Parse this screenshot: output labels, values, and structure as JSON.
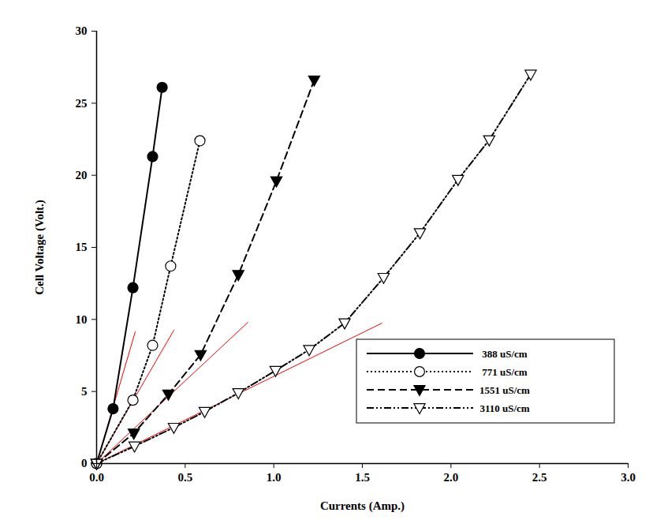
{
  "chart_data": {
    "type": "line",
    "x_label": "Currents (Amp.)",
    "y_label": "Cell Voltage (Volt.)",
    "xlim": [
      0,
      3
    ],
    "ylim": [
      0,
      30
    ],
    "xticks": [
      {
        "value": 0,
        "label": "0.0"
      },
      {
        "value": 0.5,
        "label": "0.5"
      },
      {
        "value": 1,
        "label": "1.0"
      },
      {
        "value": 1.5,
        "label": "1.5"
      },
      {
        "value": 2,
        "label": "2.0"
      },
      {
        "value": 2.5,
        "label": "2.5"
      },
      {
        "value": 3,
        "label": "3.0"
      }
    ],
    "yticks": [
      0,
      5,
      10,
      15,
      20,
      25,
      30
    ],
    "grid": false,
    "legend": "lower right",
    "series": [
      {
        "name": "388 uS/cm",
        "color": "#000000",
        "marker": "circle",
        "line_style": "solid",
        "x": [
          0,
          0.093,
          0.205,
          0.316,
          0.37
        ],
        "values": [
          0,
          3.8,
          12.2,
          21.3,
          26.1
        ]
      },
      {
        "name": "771 uS/cm",
        "color": "#000000",
        "marker": "circle-open",
        "line_style": "dotted",
        "x": [
          0,
          0.205,
          0.316,
          0.418,
          0.583
        ],
        "values": [
          0,
          4.4,
          8.2,
          13.7,
          22.4
        ]
      },
      {
        "name": "1551 uS/cm",
        "color": "#000000",
        "marker": "triangle-down",
        "line_style": "dashed",
        "x": [
          0,
          0.21,
          0.405,
          0.587,
          0.8,
          1.015,
          1.228
        ],
        "values": [
          0,
          2.1,
          4.8,
          7.55,
          13.1,
          19.6,
          26.6
        ]
      },
      {
        "name": "3110 uS/cm",
        "color": "#000000",
        "marker": "triangle-down-open",
        "line_style": "dashdotdot",
        "x": [
          0,
          0.214,
          0.436,
          0.61,
          0.8,
          1.01,
          1.2,
          1.4,
          1.62,
          1.825,
          2.04,
          2.216,
          2.45
        ],
        "values": [
          0,
          1.2,
          2.5,
          3.6,
          4.9,
          6.45,
          7.9,
          9.75,
          12.9,
          16.0,
          19.7,
          22.45,
          27.0
        ]
      }
    ],
    "reference_lines": {
      "color": "#ff0000",
      "lines": [
        {
          "x": [
            0,
            0.218
          ],
          "values": [
            0,
            9.14
          ]
        },
        {
          "x": [
            0,
            0.436
          ],
          "values": [
            0,
            9.25
          ]
        },
        {
          "x": [
            0,
            0.854
          ],
          "values": [
            0,
            9.8
          ]
        },
        {
          "x": [
            0,
            1.61
          ],
          "values": [
            0,
            9.74
          ]
        }
      ]
    }
  }
}
